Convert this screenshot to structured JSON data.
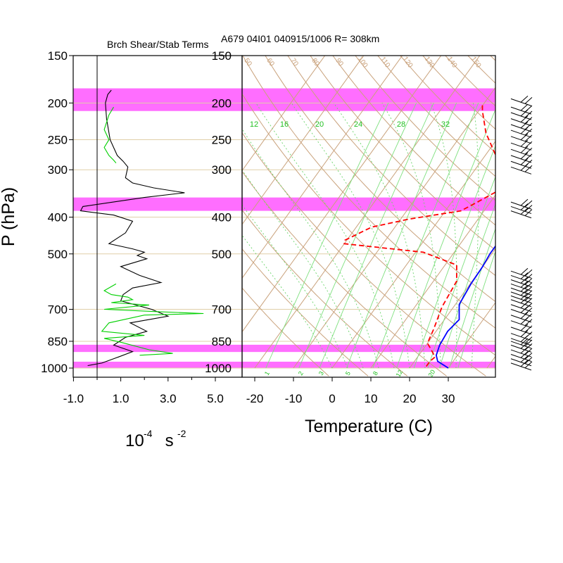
{
  "header": {
    "left_title": "Brch Shear/Stab Terms",
    "right_title": "A679 04I01 040915/1006 R= 308km"
  },
  "left_panel": {
    "y_axis_label": "P (hPa)",
    "x_unit_base": "10",
    "x_unit_exp1": "-4",
    "x_unit_mid": " s ",
    "x_unit_exp2": "-2",
    "pressure_ticks": [
      {
        "p": 150,
        "label": "150"
      },
      {
        "p": 200,
        "label": "200"
      },
      {
        "p": 250,
        "label": "250"
      },
      {
        "p": 300,
        "label": "300"
      },
      {
        "p": 400,
        "label": "400"
      },
      {
        "p": 500,
        "label": "500"
      },
      {
        "p": 700,
        "label": "700"
      },
      {
        "p": 850,
        "label": "850"
      },
      {
        "p": 1000,
        "label": "1000"
      }
    ],
    "x_ticks": [
      {
        "v": -1.0,
        "label": "-1.0"
      },
      {
        "v": 1.0,
        "label": "1.0"
      },
      {
        "v": 3.0,
        "label": "3.0"
      },
      {
        "v": 5.0,
        "label": "5.0"
      }
    ]
  },
  "right_panel": {
    "x_axis_label": "Temperature (C)",
    "pressure_labels": [
      "150",
      "200",
      "250",
      "300",
      "400",
      "500",
      "700",
      "850",
      "1000"
    ],
    "temp_ticks": [
      {
        "v": -20,
        "label": "-20"
      },
      {
        "v": -10,
        "label": "-10"
      },
      {
        "v": 0,
        "label": "0"
      },
      {
        "v": 10,
        "label": "10"
      },
      {
        "v": 20,
        "label": "20"
      },
      {
        "v": 30,
        "label": "30"
      }
    ],
    "mixing_ratio_top_labels": [
      "12",
      "16",
      "20",
      "24",
      "28",
      "32"
    ],
    "mixing_ratio_bottom_labels": [
      "1",
      "2",
      "3",
      "5",
      "8",
      "12",
      "20"
    ],
    "theta_labels": [
      "50",
      "60",
      "70",
      "80",
      "90",
      "100",
      "110",
      "120",
      "130",
      "140",
      "150"
    ]
  },
  "chart_data": {
    "type": "line",
    "vertical_axis": "pressure_hPa",
    "ylim": [
      1000,
      150
    ],
    "highlight_bands_hPa": [
      [
        183,
        210
      ],
      [
        355,
        385
      ],
      [
        868,
        907
      ],
      [
        962,
        1000
      ]
    ],
    "left_panel": {
      "xlim": [
        -1.0,
        5.0
      ],
      "series": [
        {
          "color": "#000000",
          "points": [
            [
              0.6,
              185
            ],
            [
              0.45,
              190
            ],
            [
              0.35,
              200
            ],
            [
              0.4,
              220
            ],
            [
              0.55,
              250
            ],
            [
              0.85,
              275
            ],
            [
              1.1,
              285
            ],
            [
              1.3,
              295
            ],
            [
              1.2,
              315
            ],
            [
              1.5,
              325
            ],
            [
              2.4,
              335
            ],
            [
              3.7,
              345
            ],
            [
              2.0,
              355
            ],
            [
              -0.6,
              375
            ],
            [
              -0.7,
              385
            ],
            [
              0.7,
              395
            ],
            [
              1.5,
              410
            ],
            [
              1.2,
              440
            ],
            [
              0.5,
              470
            ],
            [
              1.5,
              485
            ],
            [
              2.0,
              495
            ],
            [
              1.7,
              505
            ],
            [
              2.1,
              515
            ],
            [
              1.0,
              540
            ],
            [
              1.8,
              570
            ],
            [
              2.7,
              595
            ],
            [
              1.5,
              615
            ],
            [
              1.1,
              640
            ],
            [
              1.0,
              665
            ],
            [
              2.3,
              700
            ],
            [
              3.0,
              730
            ],
            [
              1.4,
              760
            ],
            [
              2.1,
              800
            ],
            [
              1.2,
              830
            ],
            [
              0.7,
              870
            ],
            [
              1.5,
              905
            ],
            [
              0.9,
              935
            ],
            [
              0.2,
              970
            ],
            [
              -0.4,
              985
            ]
          ]
        },
        {
          "color": "#00d000",
          "points": [
            [
              0.7,
              205
            ],
            [
              0.5,
              215
            ],
            [
              0.3,
              235
            ],
            [
              0.5,
              250
            ],
            [
              0.3,
              262
            ],
            [
              0.5,
              275
            ],
            [
              0.7,
              283
            ],
            [
              0.8,
              288
            ]
          ]
        },
        {
          "color": "#00d000",
          "points": [
            [
              0.8,
              600
            ],
            [
              0.3,
              625
            ],
            [
              0.6,
              640
            ],
            [
              1.3,
              650
            ],
            [
              1.5,
              660
            ],
            [
              0.6,
              672
            ],
            [
              2.2,
              682
            ],
            [
              0.3,
              700
            ],
            [
              2.5,
              710
            ],
            [
              4.5,
              718
            ],
            [
              2.0,
              725
            ],
            [
              0.5,
              760
            ],
            [
              0.2,
              800
            ],
            [
              2.0,
              820
            ],
            [
              0.3,
              835
            ],
            [
              1.0,
              855
            ],
            [
              2.2,
              895
            ],
            [
              3.2,
              915
            ],
            [
              1.8,
              925
            ]
          ]
        }
      ]
    },
    "skewt": {
      "x_label": "Temperature (C)",
      "temperature": {
        "color": "#0000ff",
        "style": "solid",
        "points": [
          [
            30,
            1000
          ],
          [
            26,
            960
          ],
          [
            24.5,
            925
          ],
          [
            23.5,
            870
          ],
          [
            23,
            800
          ],
          [
            23.8,
            745
          ],
          [
            21,
            680
          ],
          [
            20.2,
            600
          ],
          [
            20,
            540
          ],
          [
            19.5,
            500
          ],
          [
            19.5,
            460
          ],
          [
            16.5,
            410
          ],
          [
            13.7,
            375
          ],
          [
            13.2,
            360
          ],
          [
            10.5,
            300
          ],
          [
            6,
            240
          ],
          [
            2.5,
            210
          ],
          [
            -0.5,
            180
          ]
        ]
      },
      "dewpoint": {
        "color": "#ff0000",
        "style": "dashed",
        "points": [
          [
            24,
            990
          ],
          [
            24,
            960
          ],
          [
            24.5,
            935
          ],
          [
            22.5,
            900
          ],
          [
            20,
            860
          ],
          [
            19,
            790
          ],
          [
            17,
            690
          ],
          [
            16,
            590
          ],
          [
            13,
            535
          ],
          [
            2,
            495
          ],
          [
            -20,
            470
          ],
          [
            -20.5,
            460
          ],
          [
            -16,
            425
          ],
          [
            -8,
            405
          ],
          [
            4,
            385
          ],
          [
            6,
            370
          ],
          [
            10,
            340
          ],
          [
            7,
            300
          ],
          [
            -4,
            240
          ],
          [
            -9,
            210
          ],
          [
            -10.5,
            200
          ]
        ]
      },
      "isotherm_values": [
        -60,
        -50,
        -40,
        -30,
        -20,
        -10,
        0,
        10,
        20,
        30,
        40
      ],
      "dry_adiabat_K": [
        270,
        280,
        290,
        300,
        310,
        320,
        330,
        340,
        350,
        360,
        370,
        380,
        390,
        400,
        410,
        420,
        430,
        440
      ],
      "mixing_ratio_g_per_kg": [
        1,
        2,
        3,
        5,
        8,
        12,
        16,
        20,
        24,
        28,
        32
      ]
    },
    "wind_barbs": {
      "color": "#000000",
      "levels_hPa": [
        195,
        205,
        212,
        220,
        228,
        236,
        245,
        255,
        265,
        275,
        285,
        295,
        365,
        375,
        385,
        555,
        570,
        585,
        600,
        615,
        630,
        645,
        660,
        680,
        700,
        725,
        750,
        780,
        810,
        835,
        850,
        870,
        895,
        920,
        945,
        970
      ]
    }
  }
}
